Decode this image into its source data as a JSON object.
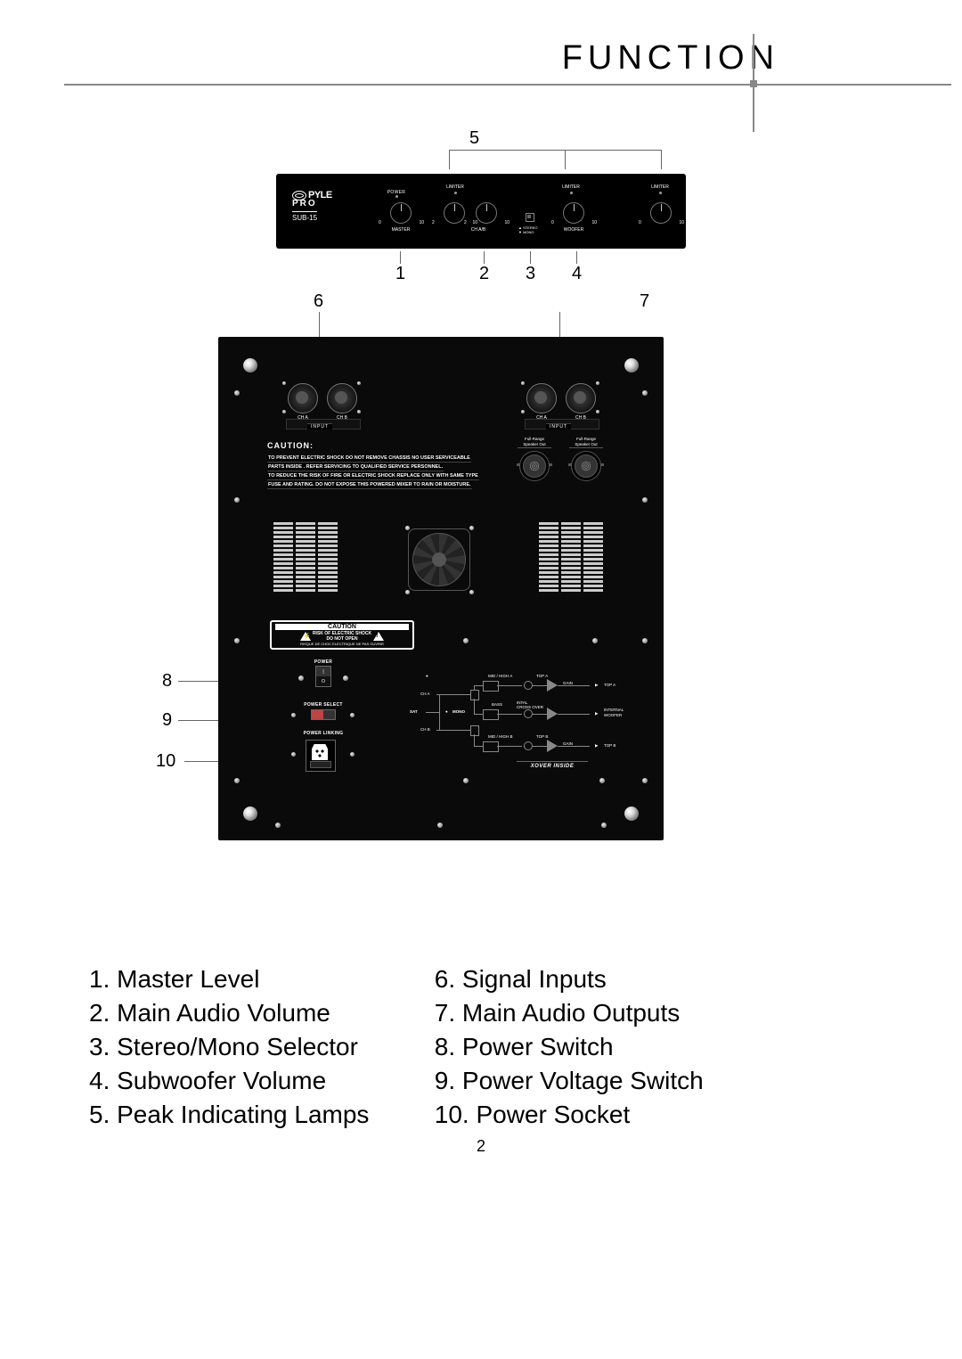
{
  "header": {
    "title": "FUNCTION"
  },
  "pageNumber": "2",
  "callouts": {
    "n1": "1",
    "n2": "2",
    "n3": "3",
    "n4": "4",
    "n5": "5",
    "n6": "6",
    "n7": "7",
    "n8": "8",
    "n9": "9",
    "n10": "10"
  },
  "legend": {
    "i1": "1. Master Level",
    "i2": "2. Main Audio Volume",
    "i3": "3. Stereo/Mono Selector",
    "i4": "4. Subwoofer Volume",
    "i5": "5. Peak Indicating Lamps",
    "i6": "6. Signal Inputs",
    "i7": "7. Main Audio Outputs",
    "i8": "8. Power Switch",
    "i9": "9. Power Voltage Switch",
    "i10": "10. Power Socket"
  },
  "front": {
    "logo1": "PYLE",
    "logo2": "PRO",
    "model": "SUB-15",
    "power": "POWER",
    "limiter": "LIMITER",
    "knob_master": "MASTER",
    "knob_chab": "CH A/B",
    "knob_woofer": "WOOFER",
    "scale_min": "0",
    "scale_left": "2",
    "scale_right": "10",
    "stereo": "▲ STEREO",
    "mono": "▼ MONO"
  },
  "rear": {
    "cha": "CH A",
    "chb": "CH B",
    "input": "INPUT",
    "cautionTitle": "CAUTION:",
    "cautionL1": "TO PREVENT ELECTRIC SHOCK DO NOT REMOVE CHASSIS NO USER SERVICEABLE",
    "cautionL2": "PARTS INSIDE . REFER SERVICING TO QUALIFIED SERVICE PERSONNEL.",
    "cautionL3": "TO REDUCE THE RISK OF FIRE OR ELECTRIC SHOCK REPLACE ONLY WITH SAME TYPE",
    "cautionL4": "FUSE AND RATING. DO NOT EXPOSE THIS POWERED MIXER TO RAIN OR MOISTURE.",
    "fullrange": "Full-Range\nSpeaker Out",
    "cautBoxTitle": "CAUTION",
    "cautBoxL1": "RISK OF ELECTRIC SHOCK",
    "cautBoxL2": "DO NOT OPEN",
    "cautBoxL3": "RISQUE DE CHOC ELECTRIQUE NE PAS OUVRIR",
    "powerLbl": "POWER",
    "powerSelect": "POWER SELECT",
    "powerLinking": "POWER LINKING",
    "xover": {
      "title": "XOVER INSIDE",
      "midA": "MID / HIGH A",
      "topA": "TOP A",
      "cha": "CH A",
      "sat": "SAT",
      "mono": "MONO",
      "bass": "BASS",
      "intWoofer": "INTERNAL\nWOOFER",
      "crossover": "INTAL\nCROSS OVER",
      "chb": "CH B",
      "midB": "MID / HIGH B",
      "topB": "TOP B",
      "gain": "GAIN"
    }
  }
}
